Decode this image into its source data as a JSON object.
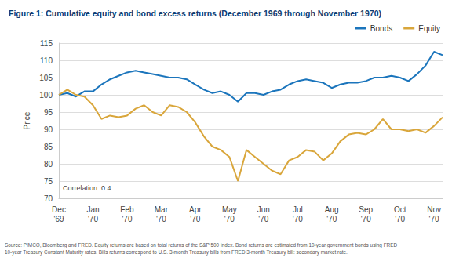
{
  "chart_data": {
    "type": "line",
    "title": "Figure 1: Cumulative equity and bond excess returns (December 1969 through November 1970)",
    "y_label": "Price",
    "annotation": "Correlation: 0.4",
    "source": [
      "Source: PIMCO, Bloomberg and FRED. Equity returns are based on total returns of the S&P 500 Index. Bond returns are estimated from 10-year government bonds using FRED",
      "10-year Treasury Constant Maturity rates. Bills returns correspond to U.S. 3-month Treasury bills from FRED 3-month Treasury bill: secondary market rate."
    ],
    "categories": [
      "Dec '69",
      null,
      null,
      null,
      "Jan '70",
      null,
      null,
      null,
      "Feb '70",
      null,
      null,
      null,
      "Mar '70",
      null,
      null,
      null,
      "Apr '70",
      null,
      null,
      null,
      "May '70",
      null,
      null,
      null,
      "Jun '70",
      null,
      null,
      null,
      "Jul '70",
      null,
      null,
      null,
      "Aug '70",
      null,
      null,
      null,
      "Sep '70",
      null,
      null,
      null,
      "Oct '70",
      null,
      null,
      null,
      "Nov '70",
      null
    ],
    "series": [
      {
        "name": "Bonds",
        "color": "#1b75bc",
        "values": [
          100,
          100.5,
          99.5,
          101,
          101,
          103,
          104.5,
          105.5,
          106.5,
          107,
          106.5,
          106,
          105.5,
          105,
          105,
          104.5,
          103,
          101.5,
          100.5,
          101,
          100,
          98,
          100.5,
          100.5,
          100,
          101,
          101.5,
          103,
          104,
          104.5,
          104,
          103.5,
          102,
          103,
          103.5,
          103.5,
          104,
          105,
          105,
          105.5,
          105,
          104,
          106,
          108.5,
          112.5,
          111.5
        ]
      },
      {
        "name": "Equity",
        "color": "#d9a63b",
        "values": [
          100,
          101.5,
          100,
          99.5,
          97,
          93,
          94,
          93.5,
          94,
          96,
          97,
          95,
          94,
          97,
          96.5,
          95,
          92,
          88,
          85,
          84,
          82,
          75,
          84,
          82,
          80,
          78,
          77,
          81,
          82,
          84,
          83.5,
          81,
          83,
          86.5,
          88.5,
          89,
          88.5,
          90,
          93,
          90,
          90,
          89.5,
          90,
          89,
          91,
          93.5
        ]
      }
    ],
    "ylim": [
      70,
      115
    ],
    "yticks": [
      70,
      75,
      80,
      85,
      90,
      95,
      100,
      105,
      110,
      115
    ],
    "grid": true,
    "legend": "top-right"
  }
}
